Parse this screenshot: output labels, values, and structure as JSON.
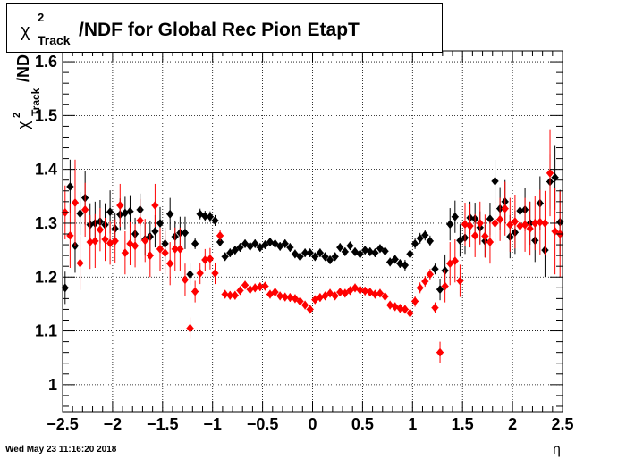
{
  "title": {
    "chi": "χ",
    "sup": "2",
    "sub": "Track",
    "rest": "/NDF for Global Rec Pion EtapT"
  },
  "timestamp": "Wed May 23 11:16:20 2018",
  "chart_data": {
    "type": "scatter",
    "xlabel": "η",
    "ylabel": "χ²_Track/NDF",
    "xlim": [
      -2.5,
      2.5
    ],
    "ylim": [
      0.95,
      1.62
    ],
    "x_ticks": [
      "−2.5",
      "−2",
      "−1.5",
      "−1",
      "−0.5",
      "0",
      "0.5",
      "1",
      "1.5",
      "2",
      "2.5"
    ],
    "y_ticks": [
      "1",
      "1.1",
      "1.2",
      "1.3",
      "1.4",
      "1.5",
      "1.6"
    ],
    "grid": true,
    "series": [
      {
        "color": "#000000",
        "points": [
          [
            -2.475,
            1.18,
            0.03
          ],
          [
            -2.425,
            1.368,
            0.05
          ],
          [
            -2.375,
            1.258,
            0.05
          ],
          [
            -2.325,
            1.318,
            0.04
          ],
          [
            -2.275,
            1.347,
            0.05
          ],
          [
            -2.225,
            1.297,
            0.04
          ],
          [
            -2.175,
            1.3,
            0.04
          ],
          [
            -2.125,
            1.303,
            0.04
          ],
          [
            -2.075,
            1.297,
            0.04
          ],
          [
            -2.025,
            1.321,
            0.04
          ],
          [
            -1.975,
            1.29,
            0.03
          ],
          [
            -1.925,
            1.316,
            0.03
          ],
          [
            -1.875,
            1.319,
            0.03
          ],
          [
            -1.825,
            1.322,
            0.03
          ],
          [
            -1.775,
            1.28,
            0.03
          ],
          [
            -1.725,
            1.325,
            0.03
          ],
          [
            -1.675,
            1.27,
            0.03
          ],
          [
            -1.625,
            1.275,
            0.03
          ],
          [
            -1.575,
            1.285,
            0.03
          ],
          [
            -1.525,
            1.3,
            0.03
          ],
          [
            -1.475,
            1.262,
            0.03
          ],
          [
            -1.425,
            1.317,
            0.03
          ],
          [
            -1.375,
            1.275,
            0.03
          ],
          [
            -1.325,
            1.282,
            0.03
          ],
          [
            -1.275,
            1.282,
            0.03
          ],
          [
            -1.225,
            1.205,
            0.02
          ],
          [
            -1.175,
            1.262,
            0.01
          ],
          [
            -1.125,
            1.317,
            0.01
          ],
          [
            -1.075,
            1.313,
            0.01
          ],
          [
            -1.025,
            1.312,
            0.01
          ],
          [
            -0.975,
            1.305,
            0.01
          ],
          [
            -0.925,
            1.265,
            0.008
          ],
          [
            -0.875,
            1.238,
            0.008
          ],
          [
            -0.825,
            1.245,
            0.008
          ],
          [
            -0.775,
            1.25,
            0.008
          ],
          [
            -0.725,
            1.255,
            0.008
          ],
          [
            -0.675,
            1.262,
            0.008
          ],
          [
            -0.625,
            1.257,
            0.008
          ],
          [
            -0.575,
            1.262,
            0.008
          ],
          [
            -0.525,
            1.255,
            0.008
          ],
          [
            -0.475,
            1.26,
            0.008
          ],
          [
            -0.425,
            1.265,
            0.008
          ],
          [
            -0.375,
            1.262,
            0.008
          ],
          [
            -0.325,
            1.257,
            0.008
          ],
          [
            -0.275,
            1.262,
            0.008
          ],
          [
            -0.225,
            1.255,
            0.008
          ],
          [
            -0.175,
            1.243,
            0.008
          ],
          [
            -0.125,
            1.238,
            0.008
          ],
          [
            -0.075,
            1.245,
            0.008
          ],
          [
            -0.025,
            1.245,
            0.008
          ],
          [
            0.025,
            1.238,
            0.008
          ],
          [
            0.075,
            1.245,
            0.008
          ],
          [
            0.125,
            1.238,
            0.008
          ],
          [
            0.175,
            1.232,
            0.008
          ],
          [
            0.225,
            1.238,
            0.008
          ],
          [
            0.275,
            1.255,
            0.008
          ],
          [
            0.325,
            1.247,
            0.008
          ],
          [
            0.375,
            1.258,
            0.008
          ],
          [
            0.425,
            1.247,
            0.008
          ],
          [
            0.475,
            1.243,
            0.008
          ],
          [
            0.525,
            1.25,
            0.008
          ],
          [
            0.575,
            1.247,
            0.008
          ],
          [
            0.625,
            1.245,
            0.008
          ],
          [
            0.675,
            1.253,
            0.008
          ],
          [
            0.725,
            1.248,
            0.008
          ],
          [
            0.775,
            1.228,
            0.008
          ],
          [
            0.825,
            1.233,
            0.008
          ],
          [
            0.875,
            1.225,
            0.008
          ],
          [
            0.925,
            1.222,
            0.01
          ],
          [
            0.975,
            1.243,
            0.01
          ],
          [
            1.025,
            1.262,
            0.01
          ],
          [
            1.075,
            1.272,
            0.01
          ],
          [
            1.125,
            1.278,
            0.01
          ],
          [
            1.175,
            1.267,
            0.01
          ],
          [
            1.225,
            1.215,
            0.01
          ],
          [
            1.275,
            1.177,
            0.02
          ],
          [
            1.325,
            1.212,
            0.03
          ],
          [
            1.375,
            1.298,
            0.03
          ],
          [
            1.425,
            1.312,
            0.03
          ],
          [
            1.475,
            1.268,
            0.03
          ],
          [
            1.525,
            1.273,
            0.03
          ],
          [
            1.575,
            1.31,
            0.03
          ],
          [
            1.625,
            1.308,
            0.03
          ],
          [
            1.675,
            1.292,
            0.03
          ],
          [
            1.725,
            1.267,
            0.03
          ],
          [
            1.775,
            1.308,
            0.03
          ],
          [
            1.825,
            1.378,
            0.04
          ],
          [
            1.875,
            1.327,
            0.04
          ],
          [
            1.925,
            1.34,
            0.04
          ],
          [
            1.975,
            1.275,
            0.04
          ],
          [
            2.025,
            1.283,
            0.04
          ],
          [
            2.075,
            1.323,
            0.04
          ],
          [
            2.125,
            1.325,
            0.04
          ],
          [
            2.175,
            1.3,
            0.04
          ],
          [
            2.225,
            1.268,
            0.04
          ],
          [
            2.275,
            1.337,
            0.05
          ],
          [
            2.325,
            1.25,
            0.05
          ],
          [
            2.375,
            1.377,
            0.05
          ],
          [
            2.425,
            1.385,
            0.06
          ],
          [
            2.475,
            1.302,
            0.06
          ]
        ]
      },
      {
        "color": "#ff0000",
        "points": [
          [
            -2.475,
            1.32,
            0.05
          ],
          [
            -2.425,
            1.277,
            0.06
          ],
          [
            -2.375,
            1.338,
            0.08
          ],
          [
            -2.325,
            1.226,
            0.05
          ],
          [
            -2.275,
            1.325,
            0.05
          ],
          [
            -2.225,
            1.265,
            0.05
          ],
          [
            -2.175,
            1.267,
            0.05
          ],
          [
            -2.125,
            1.288,
            0.04
          ],
          [
            -2.075,
            1.27,
            0.04
          ],
          [
            -2.025,
            1.263,
            0.04
          ],
          [
            -1.975,
            1.267,
            0.04
          ],
          [
            -1.925,
            1.333,
            0.04
          ],
          [
            -1.875,
            1.245,
            0.04
          ],
          [
            -1.825,
            1.262,
            0.04
          ],
          [
            -1.775,
            1.258,
            0.04
          ],
          [
            -1.725,
            1.305,
            0.04
          ],
          [
            -1.675,
            1.268,
            0.04
          ],
          [
            -1.625,
            1.24,
            0.04
          ],
          [
            -1.575,
            1.333,
            0.04
          ],
          [
            -1.525,
            1.252,
            0.04
          ],
          [
            -1.475,
            1.245,
            0.04
          ],
          [
            -1.425,
            1.225,
            0.04
          ],
          [
            -1.375,
            1.252,
            0.04
          ],
          [
            -1.325,
            1.252,
            0.04
          ],
          [
            -1.275,
            1.195,
            0.03
          ],
          [
            -1.225,
            1.105,
            0.02
          ],
          [
            -1.175,
            1.173,
            0.02
          ],
          [
            -1.125,
            1.207,
            0.02
          ],
          [
            -1.075,
            1.232,
            0.02
          ],
          [
            -1.025,
            1.234,
            0.02
          ],
          [
            -0.975,
            1.207,
            0.02
          ],
          [
            -0.925,
            1.277,
            0.01
          ],
          [
            -0.875,
            1.168,
            0.008
          ],
          [
            -0.825,
            1.166,
            0.008
          ],
          [
            -0.775,
            1.166,
            0.008
          ],
          [
            -0.725,
            1.175,
            0.008
          ],
          [
            -0.675,
            1.185,
            0.008
          ],
          [
            -0.625,
            1.177,
            0.008
          ],
          [
            -0.575,
            1.18,
            0.008
          ],
          [
            -0.525,
            1.182,
            0.008
          ],
          [
            -0.475,
            1.183,
            0.008
          ],
          [
            -0.425,
            1.168,
            0.008
          ],
          [
            -0.375,
            1.172,
            0.008
          ],
          [
            -0.325,
            1.165,
            0.008
          ],
          [
            -0.275,
            1.163,
            0.008
          ],
          [
            -0.225,
            1.162,
            0.008
          ],
          [
            -0.175,
            1.16,
            0.008
          ],
          [
            -0.125,
            1.155,
            0.008
          ],
          [
            -0.075,
            1.148,
            0.008
          ],
          [
            -0.025,
            1.14,
            0.008
          ],
          [
            0.025,
            1.158,
            0.008
          ],
          [
            0.075,
            1.162,
            0.008
          ],
          [
            0.125,
            1.165,
            0.008
          ],
          [
            0.175,
            1.17,
            0.008
          ],
          [
            0.225,
            1.165,
            0.008
          ],
          [
            0.275,
            1.172,
            0.008
          ],
          [
            0.325,
            1.17,
            0.008
          ],
          [
            0.375,
            1.175,
            0.008
          ],
          [
            0.425,
            1.18,
            0.008
          ],
          [
            0.475,
            1.176,
            0.008
          ],
          [
            0.525,
            1.174,
            0.008
          ],
          [
            0.575,
            1.172,
            0.008
          ],
          [
            0.625,
            1.168,
            0.008
          ],
          [
            0.675,
            1.17,
            0.008
          ],
          [
            0.725,
            1.164,
            0.008
          ],
          [
            0.775,
            1.148,
            0.008
          ],
          [
            0.825,
            1.145,
            0.008
          ],
          [
            0.875,
            1.142,
            0.008
          ],
          [
            0.925,
            1.14,
            0.008
          ],
          [
            0.975,
            1.133,
            0.008
          ],
          [
            1.025,
            1.155,
            0.01
          ],
          [
            1.075,
            1.18,
            0.01
          ],
          [
            1.125,
            1.192,
            0.01
          ],
          [
            1.175,
            1.205,
            0.01
          ],
          [
            1.225,
            1.143,
            0.01
          ],
          [
            1.275,
            1.06,
            0.02
          ],
          [
            1.325,
            1.183,
            0.03
          ],
          [
            1.375,
            1.225,
            0.04
          ],
          [
            1.425,
            1.23,
            0.04
          ],
          [
            1.475,
            1.193,
            0.03
          ],
          [
            1.525,
            1.298,
            0.04
          ],
          [
            1.575,
            1.295,
            0.04
          ],
          [
            1.625,
            1.277,
            0.04
          ],
          [
            1.675,
            1.3,
            0.04
          ],
          [
            1.725,
            1.276,
            0.04
          ],
          [
            1.775,
            1.265,
            0.04
          ],
          [
            1.825,
            1.3,
            0.04
          ],
          [
            1.875,
            1.307,
            0.04
          ],
          [
            1.925,
            1.327,
            0.05
          ],
          [
            1.975,
            1.297,
            0.05
          ],
          [
            2.025,
            1.303,
            0.05
          ],
          [
            2.075,
            1.295,
            0.05
          ],
          [
            2.125,
            1.297,
            0.05
          ],
          [
            2.175,
            1.29,
            0.05
          ],
          [
            2.225,
            1.3,
            0.05
          ],
          [
            2.275,
            1.302,
            0.06
          ],
          [
            2.325,
            1.3,
            0.06
          ],
          [
            2.375,
            1.393,
            0.08
          ],
          [
            2.425,
            1.285,
            0.08
          ],
          [
            2.475,
            1.28,
            0.08
          ]
        ]
      }
    ]
  }
}
